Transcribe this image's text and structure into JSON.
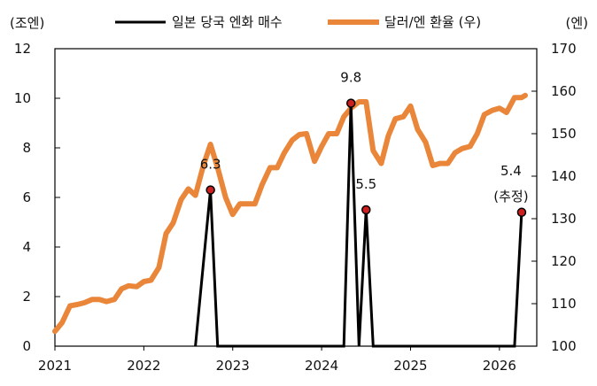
{
  "chart_data": {
    "type": "line",
    "left_axis": {
      "unit_label": "(조엔)",
      "min": 0,
      "max": 12,
      "ticks": [
        0,
        2,
        4,
        6,
        8,
        10,
        12
      ]
    },
    "right_axis": {
      "unit_label": "(엔)",
      "min": 100,
      "max": 170,
      "ticks": [
        100,
        110,
        120,
        130,
        140,
        150,
        160,
        170
      ]
    },
    "x_axis": {
      "min": 2021,
      "max": 2026.42,
      "ticks": [
        2021,
        2022,
        2023,
        2024,
        2025,
        2026
      ]
    },
    "legend": {
      "placement": "top",
      "items": [
        {
          "label": "일본 당국 엔화 매수",
          "color": "#000000"
        },
        {
          "label": "달러/엔 환율 (우)",
          "color": "#E9863A"
        }
      ]
    },
    "series": [
      {
        "name": "일본 당국 엔화 매수",
        "axis": "left",
        "color": "#000000",
        "points": [
          [
            2022.58,
            0
          ],
          [
            2022.75,
            6.3
          ],
          [
            2022.83,
            0
          ],
          [
            2024.25,
            0
          ],
          [
            2024.33,
            9.8
          ],
          [
            2024.42,
            0
          ],
          [
            2024.5,
            5.5
          ],
          [
            2024.58,
            0
          ],
          [
            2026.17,
            0
          ],
          [
            2026.25,
            5.4
          ]
        ]
      },
      {
        "name": "달러/엔 환율 (우)",
        "axis": "right",
        "color": "#E9863A",
        "points": [
          [
            2021.0,
            103.5
          ],
          [
            2021.08,
            105.5
          ],
          [
            2021.17,
            109.5
          ],
          [
            2021.25,
            109.8
          ],
          [
            2021.33,
            110.2
          ],
          [
            2021.42,
            111.0
          ],
          [
            2021.5,
            111.0
          ],
          [
            2021.58,
            110.5
          ],
          [
            2021.67,
            111.0
          ],
          [
            2021.75,
            113.5
          ],
          [
            2021.83,
            114.2
          ],
          [
            2021.92,
            114.0
          ],
          [
            2022.0,
            115.2
          ],
          [
            2022.08,
            115.5
          ],
          [
            2022.17,
            118.5
          ],
          [
            2022.25,
            126.5
          ],
          [
            2022.33,
            129.0
          ],
          [
            2022.42,
            134.5
          ],
          [
            2022.5,
            137.0
          ],
          [
            2022.58,
            135.5
          ],
          [
            2022.67,
            142.5
          ],
          [
            2022.75,
            147.5
          ],
          [
            2022.83,
            142.0
          ],
          [
            2022.92,
            135.0
          ],
          [
            2023.0,
            131.0
          ],
          [
            2023.08,
            133.5
          ],
          [
            2023.17,
            133.5
          ],
          [
            2023.25,
            133.5
          ],
          [
            2023.33,
            138.0
          ],
          [
            2023.42,
            142.0
          ],
          [
            2023.5,
            142.0
          ],
          [
            2023.58,
            145.5
          ],
          [
            2023.67,
            148.5
          ],
          [
            2023.75,
            149.8
          ],
          [
            2023.83,
            150.0
          ],
          [
            2023.92,
            143.5
          ],
          [
            2024.0,
            147.0
          ],
          [
            2024.08,
            150.0
          ],
          [
            2024.17,
            150.0
          ],
          [
            2024.25,
            154.0
          ],
          [
            2024.33,
            156.0
          ],
          [
            2024.42,
            157.5
          ],
          [
            2024.5,
            157.5
          ],
          [
            2024.58,
            146.0
          ],
          [
            2024.67,
            143.0
          ],
          [
            2024.75,
            149.5
          ],
          [
            2024.83,
            153.5
          ],
          [
            2024.92,
            154.0
          ],
          [
            2025.0,
            156.5
          ],
          [
            2025.08,
            151.0
          ],
          [
            2025.17,
            148.0
          ],
          [
            2025.25,
            142.5
          ],
          [
            2025.33,
            143.0
          ],
          [
            2025.42,
            143.0
          ],
          [
            2025.5,
            145.5
          ],
          [
            2025.58,
            146.5
          ],
          [
            2025.67,
            147.0
          ],
          [
            2025.75,
            150.0
          ],
          [
            2025.83,
            154.5
          ],
          [
            2025.92,
            155.5
          ],
          [
            2026.0,
            156.0
          ],
          [
            2026.08,
            155.0
          ],
          [
            2026.17,
            158.5
          ],
          [
            2026.25,
            158.5
          ],
          [
            2026.29,
            159.0
          ]
        ]
      }
    ],
    "annotations": [
      {
        "series": "일본 당국 엔화 매수",
        "x": 2022.75,
        "y": 6.3,
        "label": "6.3"
      },
      {
        "series": "일본 당국 엔화 매수",
        "x": 2024.33,
        "y": 9.8,
        "label": "9.8"
      },
      {
        "series": "일본 당국 엔화 매수",
        "x": 2024.5,
        "y": 5.5,
        "label": "5.5"
      },
      {
        "series": "일본 당국 엔화 매수",
        "x": 2026.25,
        "y": 5.4,
        "label": "5.4",
        "note": "(추정)"
      }
    ]
  }
}
